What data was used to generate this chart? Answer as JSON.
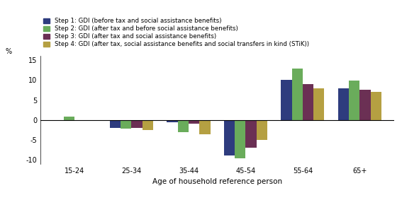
{
  "categories": [
    "15-24",
    "25-34",
    "35-44",
    "45-54",
    "55-64",
    "65+"
  ],
  "steps": [
    "Step 1: GDI (before tax and social assistance benefits)",
    "Step 2: GDI (after tax and before social assistance benefits)",
    "Step 3: GDI (after tax and social assistance benefits)",
    "Step 4: GDI (after tax, social assistance benefits and social transfers in kind (STiK))"
  ],
  "colors": [
    "#2e3c7e",
    "#6aac5b",
    "#6b3054",
    "#b5a042"
  ],
  "values": {
    "step1": [
      -0.3,
      -2.0,
      -0.5,
      -8.8,
      10.0,
      8.0
    ],
    "step2": [
      0.8,
      -2.2,
      -3.0,
      -9.5,
      12.8,
      9.9
    ],
    "step3": [
      -0.2,
      -2.0,
      -1.0,
      -7.0,
      9.0,
      7.5
    ],
    "step4": [
      -0.3,
      -2.5,
      -3.5,
      -5.0,
      8.0,
      7.0
    ]
  },
  "ylim": [
    -11,
    16
  ],
  "yticks": [
    -10,
    -5,
    0,
    5,
    10,
    15
  ],
  "ylabel": "%",
  "xlabel": "Age of household reference person",
  "bar_width": 0.19,
  "background_color": "#ffffff",
  "tick_fontsize": 7,
  "label_fontsize": 7.5,
  "legend_fontsize": 6.2
}
